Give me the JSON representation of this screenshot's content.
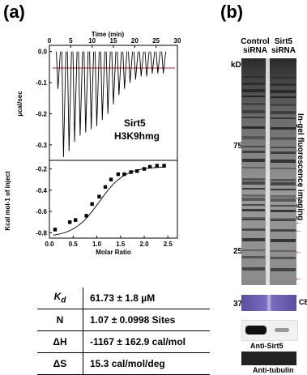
{
  "panel_a": {
    "label": "(a)",
    "top_plot": {
      "xlabel": "Time (min)",
      "ylabel": "µcal/sec",
      "x_ticks": [
        "0",
        "5",
        "10",
        "15",
        "20",
        "25",
        "30"
      ],
      "y_ticks": [
        "0.0",
        "-0.1",
        "-0.2",
        "-0.3"
      ],
      "annotation_line1": "Sirt5",
      "annotation_line2": "H3K9hmg"
    },
    "bottom_plot": {
      "xlabel": "Molar Ratio",
      "ylabel": "Kcal mol-1 of inject",
      "x_ticks": [
        "0.0",
        "0.5",
        "1.0",
        "1.5",
        "2.0",
        "2.5"
      ],
      "y_ticks": [
        "-0.2",
        "-0.4",
        "-0.6",
        "-0.8"
      ]
    },
    "table": [
      {
        "symbol": "K",
        "sub": "d",
        "value": "61.73 ± 1.8 µM"
      },
      {
        "symbol": "N",
        "sub": "",
        "value": "1.07 ± 0.0998 Sites"
      },
      {
        "symbol": "ΔH",
        "sub": "",
        "value": "-1167 ± 162.9 cal/mol"
      },
      {
        "symbol": "ΔS",
        "sub": "",
        "value": "15.3 cal/mol/deg"
      }
    ]
  },
  "panel_b": {
    "label": "(b)",
    "lane1_line1": "Control",
    "lane1_line2": "siRNA",
    "lane2_line1": "Sirt5",
    "lane2_line2": "siRNA",
    "kd_label": "kD",
    "markers": [
      "75",
      "25",
      "37"
    ],
    "side_label": "In-gel fluorescence imaging",
    "cb_label": "CB",
    "western_label": "Anti-Sirt5",
    "bottom_label": "Anti-tubulin"
  },
  "chart_data": [
    {
      "type": "line",
      "title": "",
      "xlabel": "Time (min)",
      "ylabel": "µcal/sec",
      "xlim": [
        0,
        30
      ],
      "ylim": [
        -0.35,
        0.02
      ],
      "series": [
        {
          "x": [
            2.0,
            3.3,
            4.6,
            5.9,
            7.2,
            8.5,
            9.8,
            11.1,
            12.4,
            13.7,
            15.0,
            16.3,
            17.6,
            18.9,
            20.2,
            21.5,
            22.8,
            24.1,
            25.4,
            26.7
          ],
          "values": [
            -0.12,
            -0.34,
            -0.32,
            -0.29,
            -0.27,
            -0.26,
            -0.25,
            -0.24,
            -0.22,
            -0.2,
            -0.17,
            -0.14,
            -0.12,
            -0.1,
            -0.09,
            -0.08,
            -0.08,
            -0.07,
            -0.07,
            -0.07
          ]
        }
      ]
    },
    {
      "type": "scatter",
      "title": "",
      "xlabel": "Molar Ratio",
      "ylabel": "Kcal mol-1 of inject",
      "xlim": [
        0.0,
        2.7
      ],
      "ylim": [
        -0.85,
        -0.12
      ],
      "series": [
        {
          "x": [
            0.12,
            0.43,
            0.55,
            0.78,
            0.9,
            1.05,
            1.18,
            1.3,
            1.45,
            1.58,
            1.72,
            1.85,
            2.0,
            2.12,
            2.27,
            2.42
          ],
          "values": [
            -0.77,
            -0.7,
            -0.68,
            -0.64,
            -0.53,
            -0.46,
            -0.37,
            -0.3,
            -0.25,
            -0.25,
            -0.23,
            -0.22,
            -0.2,
            -0.18,
            -0.17,
            -0.17
          ]
        }
      ]
    }
  ]
}
